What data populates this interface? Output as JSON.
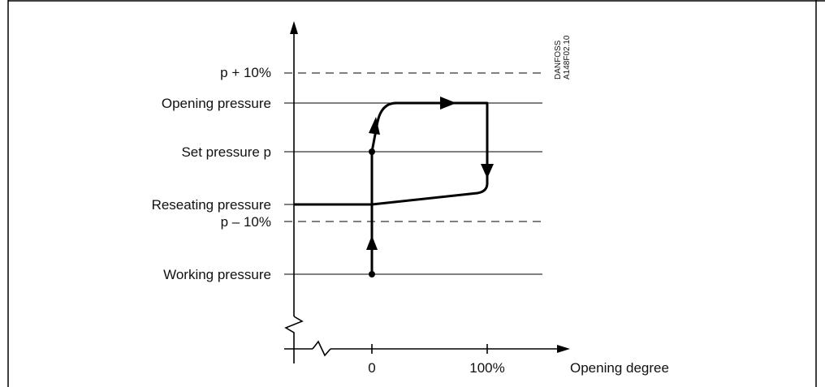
{
  "levels": {
    "p_plus": "p + 10%",
    "opening": "Opening pressure",
    "set": "Set pressure p",
    "reseating": "Reseating pressure",
    "p_minus": "p – 10%",
    "working": "Working pressure"
  },
  "x_axis": {
    "label": "Opening degree",
    "tick_0": "0",
    "tick_100": "100%"
  },
  "stamp": {
    "line1": "DANFOSS",
    "line2": "A148F02.10"
  }
}
